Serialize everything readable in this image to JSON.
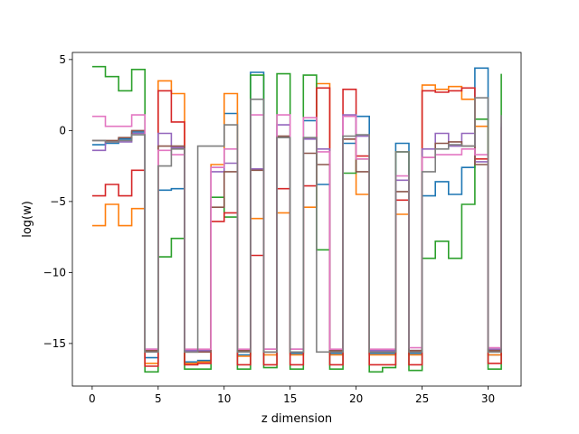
{
  "chart_data": {
    "type": "line",
    "step": "post",
    "title": "",
    "xlabel": "z dimension",
    "ylabel": "log(w)",
    "xlim": [
      -1.5,
      32.5
    ],
    "ylim": [
      -18,
      5.5
    ],
    "xticks": [
      0,
      5,
      10,
      15,
      20,
      25,
      30
    ],
    "yticks": [
      5,
      0,
      -5,
      -10,
      -15
    ],
    "grid": false,
    "legend": "none",
    "x": [
      0,
      1,
      2,
      3,
      4,
      5,
      6,
      7,
      8,
      9,
      10,
      11,
      12,
      13,
      14,
      15,
      16,
      17,
      18,
      19,
      20,
      21,
      22,
      23,
      24,
      25,
      26,
      27,
      28,
      29,
      30,
      31
    ],
    "series": [
      {
        "color": "#1f77b4",
        "values": [
          -1.0,
          -0.9,
          -0.6,
          -0.1,
          -16.0,
          -4.2,
          -4.1,
          -16.3,
          -16.2,
          -2.6,
          1.2,
          -15.8,
          4.1,
          -15.6,
          -0.5,
          -15.7,
          0.7,
          -3.8,
          -15.7,
          -0.9,
          1.0,
          -15.7,
          -15.7,
          -0.9,
          -15.7,
          -4.6,
          -3.6,
          -4.5,
          -2.6,
          4.4,
          -15.8,
          0.3
        ]
      },
      {
        "color": "#ff7f0e",
        "values": [
          -6.7,
          -5.2,
          -6.7,
          -5.5,
          -16.4,
          3.5,
          2.6,
          -16.4,
          -16.3,
          -2.4,
          2.6,
          -15.9,
          -6.2,
          -15.8,
          -5.8,
          -15.8,
          -5.4,
          3.3,
          -15.8,
          -0.6,
          -4.5,
          -15.8,
          -15.8,
          -5.9,
          -15.8,
          3.2,
          2.9,
          3.1,
          2.2,
          0.3,
          -15.8,
          -1.9
        ]
      },
      {
        "color": "#2ca02c",
        "values": [
          4.5,
          3.8,
          2.8,
          4.3,
          -17.0,
          -8.9,
          -7.6,
          -16.8,
          -16.8,
          -4.7,
          -6.1,
          -16.8,
          3.9,
          -16.7,
          4.0,
          -16.8,
          3.9,
          -8.4,
          -16.8,
          -3.0,
          -2.0,
          -17.0,
          -16.7,
          -1.5,
          -16.9,
          -9.0,
          -7.8,
          -9.0,
          -5.2,
          0.8,
          -16.8,
          4.0
        ]
      },
      {
        "color": "#d62728",
        "values": [
          -4.6,
          -3.8,
          -4.6,
          -2.8,
          -16.6,
          2.8,
          0.6,
          -16.5,
          -16.4,
          -6.4,
          -5.8,
          -16.5,
          -8.8,
          -16.5,
          -4.1,
          -16.5,
          -3.9,
          3.0,
          -16.5,
          2.9,
          -1.8,
          -16.5,
          -16.5,
          -4.9,
          -16.5,
          2.8,
          2.7,
          2.8,
          3.0,
          -2.0,
          -16.4,
          0.1
        ]
      },
      {
        "color": "#9467bd",
        "values": [
          -1.4,
          -0.8,
          -0.8,
          -0.2,
          -15.4,
          -0.2,
          -1.2,
          -15.5,
          -15.5,
          -2.9,
          -2.3,
          -15.5,
          -2.7,
          -15.4,
          0.4,
          -15.4,
          -0.6,
          -1.3,
          -15.5,
          1.1,
          -0.4,
          -15.5,
          -15.5,
          -3.5,
          -15.5,
          -1.3,
          -0.2,
          -1.1,
          -0.2,
          -2.2,
          -15.4,
          0.5
        ]
      },
      {
        "color": "#8c564b",
        "values": [
          -0.7,
          -0.7,
          -0.5,
          0.0,
          -15.5,
          -1.1,
          -1.1,
          -15.6,
          -15.6,
          -5.4,
          -2.9,
          -15.5,
          -2.8,
          -15.6,
          -0.4,
          -15.6,
          -1.6,
          -2.4,
          -15.5,
          -0.6,
          -2.9,
          -15.6,
          -15.6,
          -4.3,
          -15.5,
          -1.9,
          -0.9,
          -0.8,
          -1.1,
          -2.4,
          -15.5,
          0.2
        ]
      },
      {
        "color": "#e377c2",
        "values": [
          1.0,
          0.3,
          0.3,
          1.1,
          -15.4,
          -1.4,
          -1.7,
          -15.4,
          -15.4,
          -2.6,
          -1.3,
          -15.4,
          1.1,
          -15.4,
          1.1,
          -15.4,
          0.9,
          -1.5,
          -15.4,
          1.0,
          -2.0,
          -15.4,
          -15.4,
          -3.2,
          -15.3,
          -1.9,
          -1.7,
          -1.7,
          -1.3,
          -1.7,
          -15.3,
          1.0
        ]
      },
      {
        "color": "#7f7f7f",
        "values": [
          -0.7,
          -0.8,
          -0.7,
          -0.3,
          -15.6,
          -2.5,
          -1.3,
          -15.6,
          -1.1,
          -1.1,
          0.4,
          -15.6,
          2.2,
          -15.6,
          -0.5,
          -15.6,
          -0.5,
          -15.6,
          -15.6,
          -0.4,
          -0.3,
          -15.6,
          -15.6,
          -1.5,
          -15.6,
          -2.9,
          -1.3,
          -1.0,
          -1.1,
          2.3,
          -15.6,
          1.1
        ]
      }
    ]
  }
}
